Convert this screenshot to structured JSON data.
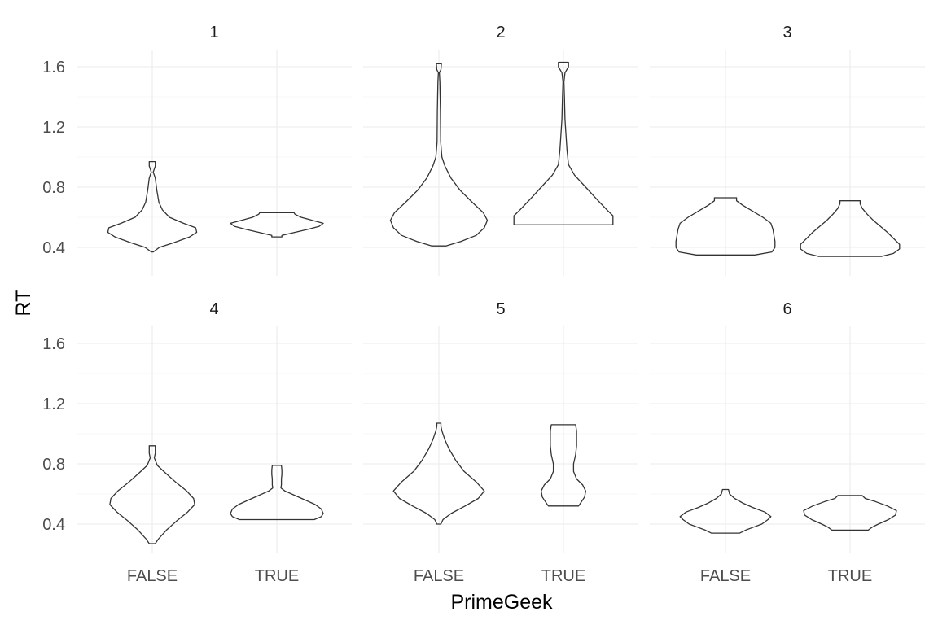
{
  "chart_data": {
    "type": "violin",
    "xlabel": "PrimeGeek",
    "ylabel": "RT",
    "categories": [
      "FALSE",
      "TRUE"
    ],
    "ylim": [
      0.2,
      1.7
    ],
    "yticks": [
      0.4,
      0.8,
      1.2,
      1.6
    ],
    "yticks_labels": [
      "0.4",
      "0.8",
      "1.2",
      "1.6"
    ],
    "grid": true,
    "facets": [
      {
        "label": "1",
        "violins": [
          {
            "category": "FALSE",
            "min": 0.37,
            "max": 0.97,
            "profile": [
              [
                0.37,
                0.02
              ],
              [
                0.4,
                0.14
              ],
              [
                0.43,
                0.42
              ],
              [
                0.47,
                0.74
              ],
              [
                0.5,
                0.88
              ],
              [
                0.53,
                0.86
              ],
              [
                0.56,
                0.62
              ],
              [
                0.6,
                0.34
              ],
              [
                0.65,
                0.2
              ],
              [
                0.7,
                0.13
              ],
              [
                0.78,
                0.09
              ],
              [
                0.86,
                0.06
              ],
              [
                0.9,
                0.02
              ],
              [
                0.94,
                0.06
              ],
              [
                0.97,
                0.06
              ]
            ]
          },
          {
            "category": "TRUE",
            "min": 0.47,
            "max": 0.63,
            "profile": [
              [
                0.47,
                0.1
              ],
              [
                0.48,
                0.1
              ],
              [
                0.5,
                0.36
              ],
              [
                0.52,
                0.62
              ],
              [
                0.54,
                0.84
              ],
              [
                0.56,
                0.92
              ],
              [
                0.58,
                0.7
              ],
              [
                0.6,
                0.48
              ],
              [
                0.62,
                0.36
              ],
              [
                0.63,
                0.34
              ]
            ]
          }
        ]
      },
      {
        "label": "2",
        "violins": [
          {
            "category": "FALSE",
            "min": 0.41,
            "max": 1.62,
            "profile": [
              [
                0.41,
                0.14
              ],
              [
                0.44,
                0.44
              ],
              [
                0.48,
                0.74
              ],
              [
                0.53,
                0.9
              ],
              [
                0.58,
                0.96
              ],
              [
                0.63,
                0.88
              ],
              [
                0.7,
                0.66
              ],
              [
                0.78,
                0.42
              ],
              [
                0.86,
                0.24
              ],
              [
                0.94,
                0.12
              ],
              [
                1.0,
                0.06
              ],
              [
                1.1,
                0.035
              ],
              [
                1.3,
                0.03
              ],
              [
                1.5,
                0.02
              ],
              [
                1.56,
                0.01
              ],
              [
                1.58,
                0.04
              ],
              [
                1.62,
                0.05
              ]
            ]
          },
          {
            "category": "TRUE",
            "min": 0.55,
            "max": 1.63,
            "profile": [
              [
                0.55,
                0.98
              ],
              [
                0.58,
                0.98
              ],
              [
                0.61,
                0.98
              ],
              [
                0.65,
                0.86
              ],
              [
                0.72,
                0.66
              ],
              [
                0.8,
                0.44
              ],
              [
                0.88,
                0.22
              ],
              [
                0.95,
                0.1
              ],
              [
                1.05,
                0.07
              ],
              [
                1.15,
                0.05
              ],
              [
                1.25,
                0.03
              ],
              [
                1.4,
                0.02
              ],
              [
                1.5,
                0.01
              ],
              [
                1.56,
                0.03
              ],
              [
                1.6,
                0.1
              ],
              [
                1.63,
                0.1
              ]
            ]
          }
        ]
      },
      {
        "label": "3",
        "violins": [
          {
            "category": "FALSE",
            "min": 0.35,
            "max": 0.73,
            "profile": [
              [
                0.35,
                0.58
              ],
              [
                0.37,
                0.92
              ],
              [
                0.4,
                0.98
              ],
              [
                0.44,
                0.98
              ],
              [
                0.48,
                0.96
              ],
              [
                0.52,
                0.94
              ],
              [
                0.56,
                0.9
              ],
              [
                0.6,
                0.74
              ],
              [
                0.64,
                0.54
              ],
              [
                0.68,
                0.34
              ],
              [
                0.71,
                0.22
              ],
              [
                0.73,
                0.22
              ]
            ]
          },
          {
            "category": "TRUE",
            "min": 0.34,
            "max": 0.71,
            "profile": [
              [
                0.34,
                0.62
              ],
              [
                0.36,
                0.86
              ],
              [
                0.39,
                0.98
              ],
              [
                0.42,
                0.98
              ],
              [
                0.46,
                0.86
              ],
              [
                0.5,
                0.74
              ],
              [
                0.54,
                0.6
              ],
              [
                0.58,
                0.46
              ],
              [
                0.62,
                0.34
              ],
              [
                0.66,
                0.24
              ],
              [
                0.69,
                0.2
              ],
              [
                0.71,
                0.2
              ]
            ]
          }
        ]
      },
      {
        "label": "4",
        "violins": [
          {
            "category": "FALSE",
            "min": 0.27,
            "max": 0.92,
            "profile": [
              [
                0.27,
                0.06
              ],
              [
                0.3,
                0.12
              ],
              [
                0.36,
                0.28
              ],
              [
                0.42,
                0.48
              ],
              [
                0.48,
                0.7
              ],
              [
                0.53,
                0.84
              ],
              [
                0.57,
                0.82
              ],
              [
                0.62,
                0.68
              ],
              [
                0.68,
                0.46
              ],
              [
                0.74,
                0.26
              ],
              [
                0.79,
                0.1
              ],
              [
                0.84,
                0.04
              ],
              [
                0.87,
                0.06
              ],
              [
                0.9,
                0.06
              ],
              [
                0.92,
                0.06
              ]
            ]
          },
          {
            "category": "TRUE",
            "min": 0.43,
            "max": 0.79,
            "profile": [
              [
                0.43,
                0.74
              ],
              [
                0.45,
                0.88
              ],
              [
                0.47,
                0.92
              ],
              [
                0.5,
                0.88
              ],
              [
                0.53,
                0.76
              ],
              [
                0.56,
                0.56
              ],
              [
                0.59,
                0.36
              ],
              [
                0.62,
                0.16
              ],
              [
                0.64,
                0.08
              ],
              [
                0.66,
                0.09
              ],
              [
                0.7,
                0.09
              ],
              [
                0.73,
                0.1
              ],
              [
                0.76,
                0.1
              ],
              [
                0.79,
                0.09
              ]
            ]
          }
        ]
      },
      {
        "label": "5",
        "violins": [
          {
            "category": "FALSE",
            "min": 0.4,
            "max": 1.07,
            "profile": [
              [
                0.4,
                0.04
              ],
              [
                0.43,
                0.08
              ],
              [
                0.47,
                0.24
              ],
              [
                0.52,
                0.52
              ],
              [
                0.57,
                0.78
              ],
              [
                0.62,
                0.9
              ],
              [
                0.68,
                0.74
              ],
              [
                0.75,
                0.5
              ],
              [
                0.82,
                0.34
              ],
              [
                0.9,
                0.2
              ],
              [
                0.96,
                0.12
              ],
              [
                1.02,
                0.06
              ],
              [
                1.05,
                0.04
              ],
              [
                1.07,
                0.04
              ]
            ]
          },
          {
            "category": "TRUE",
            "min": 0.52,
            "max": 1.06,
            "profile": [
              [
                0.52,
                0.3
              ],
              [
                0.55,
                0.36
              ],
              [
                0.58,
                0.42
              ],
              [
                0.62,
                0.44
              ],
              [
                0.66,
                0.38
              ],
              [
                0.7,
                0.26
              ],
              [
                0.75,
                0.2
              ],
              [
                0.8,
                0.2
              ],
              [
                0.86,
                0.24
              ],
              [
                0.92,
                0.26
              ],
              [
                0.98,
                0.26
              ],
              [
                1.02,
                0.26
              ],
              [
                1.06,
                0.24
              ]
            ]
          }
        ]
      },
      {
        "label": "6",
        "violins": [
          {
            "category": "FALSE",
            "min": 0.34,
            "max": 0.63,
            "profile": [
              [
                0.34,
                0.28
              ],
              [
                0.36,
                0.4
              ],
              [
                0.38,
                0.56
              ],
              [
                0.4,
                0.72
              ],
              [
                0.43,
                0.84
              ],
              [
                0.45,
                0.9
              ],
              [
                0.48,
                0.78
              ],
              [
                0.51,
                0.54
              ],
              [
                0.54,
                0.34
              ],
              [
                0.57,
                0.18
              ],
              [
                0.6,
                0.08
              ],
              [
                0.63,
                0.06
              ]
            ]
          },
          {
            "category": "TRUE",
            "min": 0.36,
            "max": 0.59,
            "profile": [
              [
                0.36,
                0.36
              ],
              [
                0.38,
                0.44
              ],
              [
                0.4,
                0.56
              ],
              [
                0.43,
                0.76
              ],
              [
                0.46,
                0.9
              ],
              [
                0.49,
                0.92
              ],
              [
                0.52,
                0.74
              ],
              [
                0.55,
                0.5
              ],
              [
                0.57,
                0.3
              ],
              [
                0.59,
                0.24
              ]
            ]
          }
        ]
      }
    ]
  }
}
